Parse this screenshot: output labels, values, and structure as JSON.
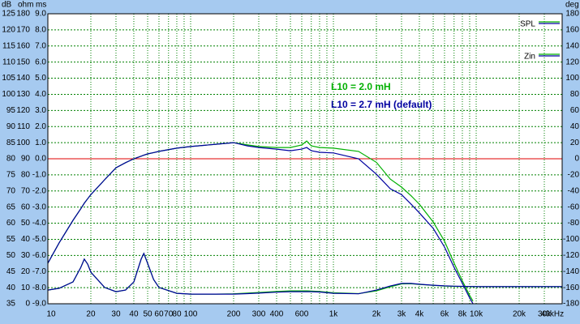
{
  "chart_data": {
    "type": "line",
    "ylabel": "dB",
    "y_ohm_label": "ohm",
    "y_ms_label": "ms",
    "y2label": "deg",
    "xscale": "log",
    "xlim": [
      10,
      40000
    ],
    "xticks": [
      10,
      20,
      30,
      40,
      50,
      60,
      70,
      80,
      100,
      200,
      300,
      400,
      600,
      {
        "value": 1000,
        "label": "1k"
      },
      {
        "value": 2000,
        "label": "2k"
      },
      {
        "value": 3000,
        "label": "3k"
      },
      {
        "value": 4000,
        "label": "4k"
      },
      {
        "value": 6000,
        "label": "6k"
      },
      {
        "value": 8000,
        "label": "8k"
      },
      {
        "value": 10000,
        "label": "10k"
      },
      {
        "value": 20000,
        "label": "20k"
      },
      {
        "value": 30000,
        "label": "30k"
      },
      {
        "value": 40000,
        "label": "40kHz"
      }
    ],
    "xminor": [
      90,
      500,
      700,
      800,
      900,
      5000,
      7000,
      9000
    ],
    "ylim": [
      35,
      125
    ],
    "yticks": [
      125,
      120,
      115,
      110,
      105,
      100,
      95,
      90,
      85,
      80,
      75,
      70,
      65,
      60,
      55,
      50,
      45,
      40,
      35
    ],
    "y_ohm_lim": [
      0,
      180
    ],
    "y_ohm_ticks": [
      180,
      170,
      160,
      150,
      140,
      130,
      120,
      110,
      100,
      90,
      80,
      70,
      60,
      50,
      40,
      30,
      20,
      10,
      0
    ],
    "y_ms_lim": [
      -9,
      9
    ],
    "y_ms_ticks": [
      {
        "value": 9,
        "label": "9.0"
      },
      {
        "value": 8,
        "label": "8.0"
      },
      {
        "value": 7,
        "label": "7.0"
      },
      {
        "value": 6,
        "label": "6.0"
      },
      {
        "value": 5,
        "label": "5.0"
      },
      {
        "value": 4,
        "label": "4.0"
      },
      {
        "value": 3,
        "label": "3.0"
      },
      {
        "value": 2,
        "label": "2.0"
      },
      {
        "value": 1,
        "label": "1.0"
      },
      {
        "value": 0,
        "label": "0.0"
      },
      {
        "value": -1,
        "label": "-1.0"
      },
      {
        "value": -2,
        "label": "-2.0"
      },
      {
        "value": -3,
        "label": "-3.0"
      },
      {
        "value": -4,
        "label": "-4.0"
      },
      {
        "value": -5,
        "label": "-5.0"
      },
      {
        "value": -6,
        "label": "-6.0"
      },
      {
        "value": -7,
        "label": "-7.0"
      },
      {
        "value": -8,
        "label": "-8.0"
      },
      {
        "value": -9,
        "label": "-9.0"
      }
    ],
    "y2lim": [
      -180,
      180
    ],
    "y2ticks": [
      180,
      160,
      140,
      120,
      100,
      80,
      60,
      40,
      20,
      0,
      -20,
      -40,
      -60,
      -80,
      -100,
      -120,
      -140,
      -160,
      -180
    ],
    "grid": true,
    "reference_line": {
      "value": 80,
      "color": "#e00000"
    },
    "legend": "top-right",
    "annotations": [
      {
        "text": "L10 = 2.0 mH",
        "color": "#00b000"
      },
      {
        "text": "L10 = 2.7 mH (default)",
        "color": "#0000a0"
      }
    ],
    "x": [
      10,
      12,
      15,
      17,
      18,
      19,
      20,
      25,
      30,
      35,
      40,
      45,
      47,
      50,
      55,
      60,
      80,
      100,
      150,
      200,
      250,
      300,
      400,
      500,
      600,
      650,
      700,
      800,
      1000,
      1500,
      2000,
      2500,
      3000,
      3500,
      4000,
      5000,
      6000,
      7000,
      8000,
      9000,
      9500,
      10000,
      20000,
      40000
    ],
    "curves": [
      {
        "name": "SPL",
        "axis": "y",
        "variants": [
          {
            "color": "#00b000",
            "values": [
              47.6,
              53.9,
              60.9,
              64.5,
              66.2,
              67.6,
              68.9,
              73.5,
              77.2,
              78.8,
              80.0,
              80.8,
              81.1,
              81.5,
              81.9,
              82.3,
              83.3,
              83.8,
              84.5,
              85.0,
              84.3,
              83.8,
              83.5,
              83.5,
              84.3,
              85.5,
              84.0,
              83.5,
              83.3,
              82.3,
              78.9,
              73.7,
              71.2,
              68.5,
              65.9,
              60.4,
              54.4,
              47.6,
              42.1,
              37.6,
              35.8,
              null,
              null,
              null
            ]
          },
          {
            "color": "#0000a0",
            "values": [
              47.6,
              53.9,
              60.9,
              64.5,
              66.2,
              67.6,
              68.9,
              73.5,
              77.2,
              78.8,
              80.0,
              80.8,
              81.1,
              81.5,
              81.9,
              82.3,
              83.3,
              83.8,
              84.5,
              85.0,
              84.0,
              83.5,
              83.0,
              82.5,
              83.0,
              83.5,
              82.5,
              82.0,
              81.8,
              80.0,
              75.2,
              70.7,
              68.9,
              65.9,
              63.2,
              58.4,
              52.6,
              46.3,
              41.3,
              36.8,
              35.0,
              null,
              null,
              null
            ]
          }
        ]
      },
      {
        "name": "Zin",
        "axis": "ohm",
        "variants": [
          {
            "color": "#00b000",
            "values": [
              8.5,
              9.6,
              13.6,
              22.6,
              27.7,
              24.6,
              19.6,
              10.1,
              7.5,
              8.5,
              13.6,
              27.7,
              31.2,
              25.1,
              15.1,
              10.1,
              6.5,
              6.0,
              6.0,
              6.2,
              6.6,
              7.0,
              7.6,
              8.0,
              8.0,
              8.0,
              7.9,
              7.6,
              6.8,
              6.3,
              8.0,
              10.5,
              12.3,
              12.4,
              12.0,
              11.4,
              11.0,
              10.8,
              10.7,
              10.7,
              10.6,
              10.6,
              10.6,
              10.6
            ]
          },
          {
            "color": "#0000a0",
            "values": [
              8.5,
              9.6,
              13.6,
              22.6,
              27.7,
              24.6,
              19.6,
              10.1,
              7.5,
              8.5,
              13.6,
              27.7,
              31.2,
              25.1,
              15.1,
              10.1,
              6.5,
              6.0,
              6.0,
              6.0,
              6.3,
              6.6,
              7.2,
              7.5,
              7.5,
              7.5,
              7.5,
              7.3,
              6.5,
              6.2,
              8.5,
              11.0,
              12.6,
              12.6,
              12.1,
              11.5,
              11.1,
              10.9,
              10.8,
              10.7,
              10.7,
              10.6,
              10.6,
              10.6
            ]
          }
        ]
      }
    ]
  }
}
